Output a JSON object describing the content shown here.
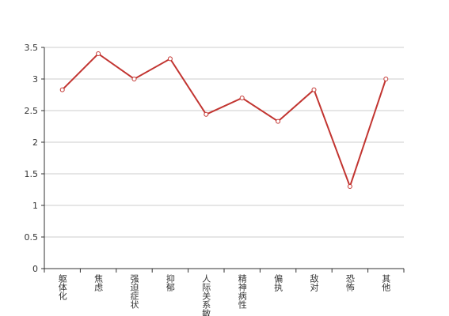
{
  "chart_data": {
    "type": "line",
    "categories": [
      "躯体化",
      "焦虑",
      "强迫症状",
      "抑郁",
      "人际关系敏感",
      "精神病性",
      "偏执",
      "敌对",
      "恐怖",
      "其他"
    ],
    "values": [
      2.83,
      3.4,
      3.0,
      3.32,
      2.44,
      2.7,
      2.33,
      2.83,
      1.3,
      3.0
    ],
    "color": "#c23531",
    "ylim": [
      0,
      3.5
    ],
    "yticks": [
      0,
      0.5,
      1,
      1.5,
      2,
      2.5,
      3,
      3.5
    ],
    "grid": true
  }
}
